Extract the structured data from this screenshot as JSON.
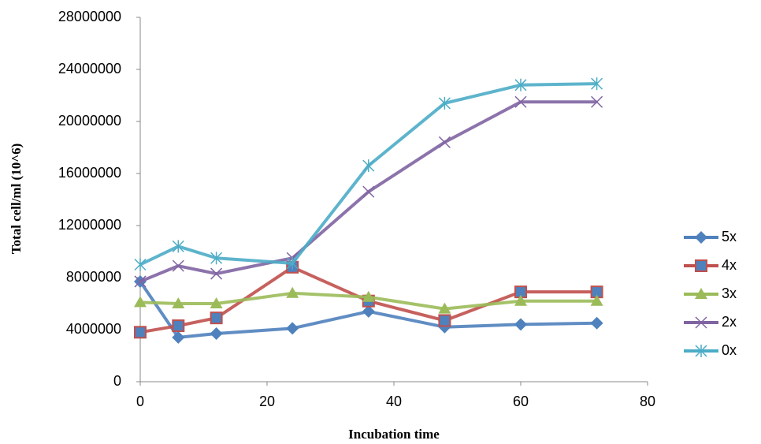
{
  "chart_data": {
    "type": "line",
    "x_label": "Incubation time",
    "y_label": "Total cell/ml  (10^6)",
    "x": [
      0,
      6,
      12,
      24,
      36,
      48,
      60,
      72
    ],
    "series": [
      {
        "name": "5x",
        "color": "#4f81bd",
        "marker": "diamond",
        "values": [
          7700000,
          3400000,
          3700000,
          4100000,
          5400000,
          4200000,
          4400000,
          4500000
        ]
      },
      {
        "name": "4x",
        "color": "#c0504d",
        "marker": "square",
        "values": [
          3800000,
          4300000,
          4900000,
          8800000,
          6200000,
          4700000,
          6900000,
          6900000
        ]
      },
      {
        "name": "3x",
        "color": "#9bbb59",
        "marker": "triangle",
        "values": [
          6100000,
          6000000,
          6000000,
          6800000,
          6500000,
          5600000,
          6200000,
          6200000
        ]
      },
      {
        "name": "2x",
        "color": "#8064a2",
        "marker": "x",
        "values": [
          7700000,
          8900000,
          8300000,
          9500000,
          14600000,
          18400000,
          21500000,
          21500000
        ]
      },
      {
        "name": "0x",
        "color": "#4bacc6",
        "marker": "star",
        "values": [
          9000000,
          10400000,
          9500000,
          9100000,
          16600000,
          21400000,
          22800000,
          22900000
        ]
      }
    ],
    "xlim": [
      0,
      80
    ],
    "xticks": [
      0,
      20,
      40,
      60,
      80
    ],
    "ylim": [
      0,
      28000000
    ],
    "yticks": [
      0,
      4000000,
      8000000,
      12000000,
      16000000,
      20000000,
      24000000,
      28000000
    ],
    "grid": false,
    "legend": "right"
  }
}
